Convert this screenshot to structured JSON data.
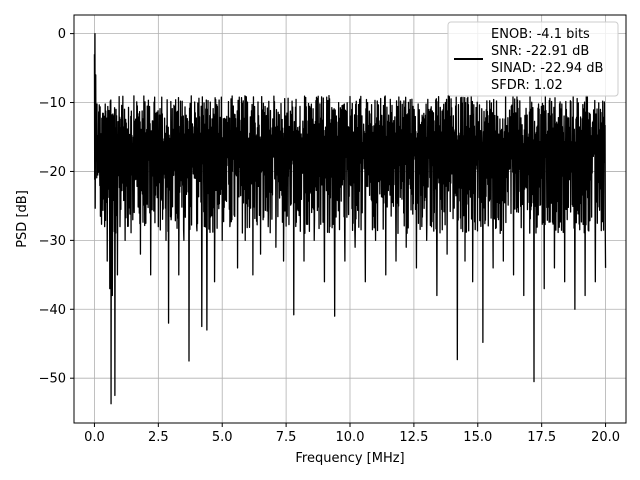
{
  "chart_data": {
    "type": "line",
    "xlabel": "Frequency [MHz]",
    "ylabel": "PSD [dB]",
    "xlim": [
      -0.8,
      20.8
    ],
    "ylim": [
      -56.5,
      2.7
    ],
    "xticks": [
      "0.0",
      "2.5",
      "5.0",
      "7.5",
      "10.0",
      "12.5",
      "15.0",
      "17.5",
      "20.0"
    ],
    "xtick_values": [
      0,
      2.5,
      5,
      7.5,
      10,
      12.5,
      15,
      17.5,
      20
    ],
    "yticks": [
      "0",
      "−10",
      "−20",
      "−30",
      "−40",
      "−50"
    ],
    "ytick_values": [
      0,
      -10,
      -20,
      -30,
      -40,
      -50
    ],
    "grid": true,
    "legend_position": "top-right",
    "legend_lines": [
      "ENOB: -4.1 bits",
      "SNR: -22.91 dB",
      "SINAD: -22.94 dB",
      "SFDR: 1.02"
    ],
    "series": [
      {
        "color": "#000000",
        "noise_band": {
          "upper": -9,
          "lower": -29
        },
        "x": [
          0,
          0.02,
          0.05,
          0.08,
          0.12,
          0.2,
          0.3,
          0.4,
          0.5,
          0.6,
          0.65,
          0.7,
          0.8,
          0.9,
          1.0,
          1.2,
          1.5,
          1.8,
          2.0,
          2.2,
          2.5,
          2.8,
          2.9,
          3.0,
          3.3,
          3.5,
          3.7,
          4.0,
          4.2,
          4.4,
          4.7,
          5.0,
          5.3,
          5.6,
          5.9,
          6.2,
          6.5,
          6.8,
          7.1,
          7.4,
          7.8,
          8.2,
          8.6,
          9.0,
          9.4,
          9.8,
          10.2,
          10.6,
          11.0,
          11.4,
          11.8,
          12.2,
          12.6,
          13.0,
          13.4,
          13.8,
          14.2,
          14.5,
          14.8,
          15.2,
          15.6,
          16.0,
          16.4,
          16.8,
          17.2,
          17.6,
          18.0,
          18.4,
          18.8,
          19.2,
          19.6,
          20.0
        ],
        "y": [
          -3,
          0,
          -6,
          -12,
          -20,
          -18,
          -24,
          -28,
          -33,
          -37,
          -53.7,
          -38,
          -52.5,
          -35,
          -28,
          -30,
          -27,
          -32,
          -25,
          -35,
          -28,
          -30,
          -42,
          -27,
          -35,
          -30,
          -47.5,
          -28,
          -42.5,
          -43,
          -36,
          -30,
          -28,
          -34,
          -30,
          -35,
          -32,
          -28,
          -31,
          -33,
          -40.8,
          -33,
          -30,
          -36,
          -41,
          -33,
          -31,
          -36,
          -30,
          -35,
          -33,
          -31,
          -34,
          -30,
          -38,
          -32,
          -47.3,
          -33,
          -36,
          -44.8,
          -34,
          -33,
          -35,
          -38,
          -50.5,
          -37,
          -34,
          -36,
          -40,
          -38,
          -36,
          -34
        ]
      }
    ]
  }
}
